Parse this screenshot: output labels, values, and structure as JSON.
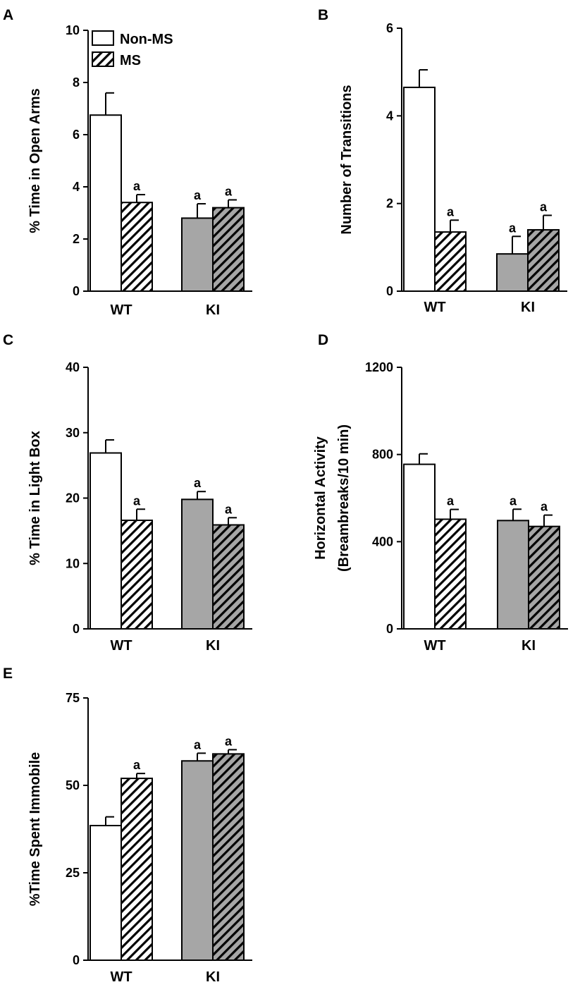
{
  "colors": {
    "non_ms_wt": "#ffffff",
    "non_ms_ki": "#a6a6a6",
    "ms_wt_bg": "#ffffff",
    "ms_ki_bg": "#a6a6a6",
    "hatch": "#000000",
    "axis": "#000000"
  },
  "legend": {
    "non_ms": "Non-MS",
    "ms": "MS"
  },
  "chart_data": [
    {
      "panel": "A",
      "type": "bar",
      "ylabel": "% Time in Open Arms",
      "ylabel_lines": [
        "% Time in Open Arms"
      ],
      "categories": [
        "WT",
        "KI"
      ],
      "ylim": [
        0,
        10
      ],
      "yticks": [
        0,
        2,
        4,
        6,
        8,
        10
      ],
      "series": [
        {
          "name": "Non-MS",
          "values": [
            6.75,
            2.8
          ],
          "errors": [
            0.85,
            0.55
          ],
          "sig": [
            "",
            "a"
          ]
        },
        {
          "name": "MS",
          "values": [
            3.4,
            3.2
          ],
          "errors": [
            0.3,
            0.3
          ],
          "sig": [
            "a",
            "a"
          ]
        }
      ]
    },
    {
      "panel": "B",
      "type": "bar",
      "ylabel": "Number of Transitions",
      "ylabel_lines": [
        "Number of Transitions"
      ],
      "categories": [
        "WT",
        "KI"
      ],
      "ylim": [
        0,
        6
      ],
      "yticks": [
        0,
        2,
        4,
        6
      ],
      "series": [
        {
          "name": "Non-MS",
          "values": [
            4.65,
            0.85
          ],
          "errors": [
            0.4,
            0.4
          ],
          "sig": [
            "",
            "a"
          ]
        },
        {
          "name": "MS",
          "values": [
            1.35,
            1.4
          ],
          "errors": [
            0.27,
            0.33
          ],
          "sig": [
            "a",
            "a"
          ]
        }
      ]
    },
    {
      "panel": "C",
      "type": "bar",
      "ylabel": "% Time in Light Box",
      "ylabel_lines": [
        "% Time in Light Box"
      ],
      "categories": [
        "WT",
        "KI"
      ],
      "ylim": [
        0,
        40
      ],
      "yticks": [
        0,
        10,
        20,
        30,
        40
      ],
      "series": [
        {
          "name": "Non-MS",
          "values": [
            26.9,
            19.8
          ],
          "errors": [
            2.0,
            1.2
          ],
          "sig": [
            "",
            "a"
          ]
        },
        {
          "name": "MS",
          "values": [
            16.6,
            15.9
          ],
          "errors": [
            1.7,
            1.1
          ],
          "sig": [
            "a",
            "a"
          ]
        }
      ]
    },
    {
      "panel": "D",
      "type": "bar",
      "ylabel": "Horizontal Activity (Breambreaks/10 min)",
      "ylabel_lines": [
        "Horizontal Activity",
        "(Breambreaks/10 min)"
      ],
      "categories": [
        "WT",
        "KI"
      ],
      "ylim": [
        0,
        1200
      ],
      "yticks": [
        0,
        400,
        800,
        1200
      ],
      "series": [
        {
          "name": "Non-MS",
          "values": [
            755,
            497
          ],
          "errors": [
            48,
            52
          ],
          "sig": [
            "",
            "a"
          ]
        },
        {
          "name": "MS",
          "values": [
            503,
            470
          ],
          "errors": [
            45,
            52
          ],
          "sig": [
            "a",
            "a"
          ]
        }
      ]
    },
    {
      "panel": "E",
      "type": "bar",
      "ylabel": "%Time Spent Immobile",
      "ylabel_lines": [
        "%Time Spent Immobile"
      ],
      "categories": [
        "WT",
        "KI"
      ],
      "ylim": [
        0,
        75
      ],
      "yticks": [
        0,
        25,
        50,
        75
      ],
      "series": [
        {
          "name": "Non-MS",
          "values": [
            38.5,
            57.0
          ],
          "errors": [
            2.5,
            2.2
          ],
          "sig": [
            "",
            "a"
          ]
        },
        {
          "name": "MS",
          "values": [
            52.0,
            59.0
          ],
          "errors": [
            1.4,
            1.2
          ],
          "sig": [
            "a",
            "a"
          ]
        }
      ]
    }
  ]
}
